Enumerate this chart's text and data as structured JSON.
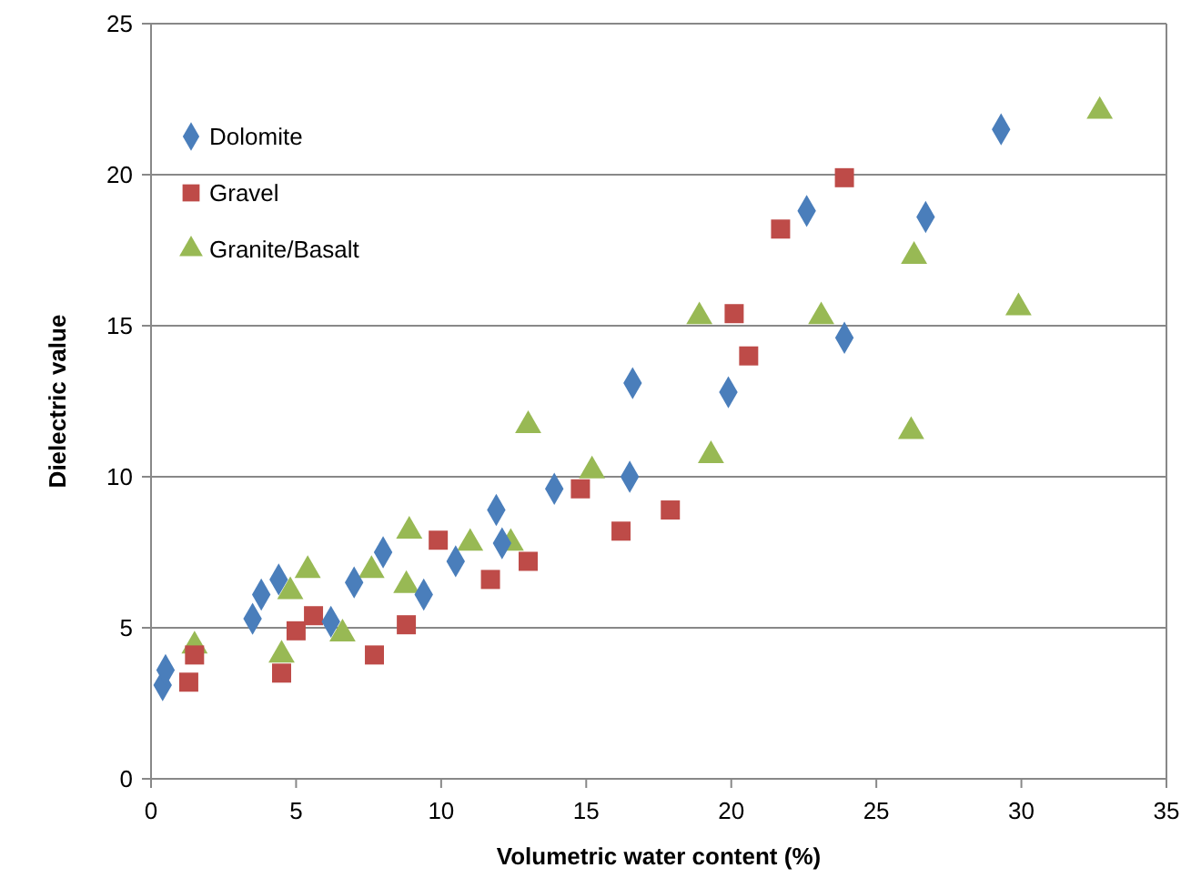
{
  "chart_data": {
    "type": "scatter",
    "xlabel": "Volumetric water content (%)",
    "ylabel": "Dielectric value",
    "xlim": [
      0,
      35
    ],
    "ylim": [
      0,
      25
    ],
    "xticks": [
      0,
      5,
      10,
      15,
      20,
      25,
      30,
      35
    ],
    "yticks": [
      0,
      5,
      10,
      15,
      20,
      25
    ],
    "grid": "y",
    "legend": "top left",
    "series": [
      {
        "name": "Dolomite",
        "color": "#4a7ebb",
        "marker": "diamond",
        "x": [
          0.4,
          0.5,
          3.5,
          3.8,
          4.4,
          6.2,
          7.0,
          8.0,
          9.4,
          10.5,
          11.9,
          12.1,
          13.9,
          16.5,
          16.6,
          19.9,
          22.6,
          23.9,
          26.7,
          29.3
        ],
        "values": [
          3.1,
          3.6,
          5.3,
          6.1,
          6.6,
          5.2,
          6.5,
          7.5,
          6.1,
          7.2,
          8.9,
          7.8,
          9.6,
          10.0,
          13.1,
          12.8,
          18.8,
          14.6,
          18.6,
          21.5
        ]
      },
      {
        "name": "Gravel",
        "color": "#be4b48",
        "marker": "square",
        "x": [
          1.3,
          1.5,
          4.5,
          5.0,
          5.6,
          7.7,
          8.8,
          9.9,
          11.7,
          13.0,
          14.8,
          16.2,
          17.9,
          20.1,
          20.6,
          21.7,
          23.9
        ],
        "values": [
          3.2,
          4.1,
          3.5,
          4.9,
          5.4,
          4.1,
          5.1,
          7.9,
          6.6,
          7.2,
          9.6,
          8.2,
          8.9,
          15.4,
          14.0,
          18.2,
          19.9
        ]
      },
      {
        "name": "Granite/Basalt",
        "color": "#98b954",
        "marker": "triangle",
        "x": [
          1.5,
          4.5,
          4.8,
          5.4,
          6.6,
          7.6,
          8.8,
          8.9,
          11.0,
          12.4,
          13.0,
          15.2,
          18.9,
          19.3,
          23.1,
          26.2,
          26.3,
          29.9,
          32.7
        ],
        "values": [
          4.4,
          4.1,
          6.2,
          6.9,
          4.8,
          6.9,
          6.4,
          8.2,
          7.8,
          7.8,
          11.7,
          10.2,
          15.3,
          10.7,
          15.3,
          11.5,
          17.3,
          15.6,
          22.1
        ]
      }
    ]
  }
}
